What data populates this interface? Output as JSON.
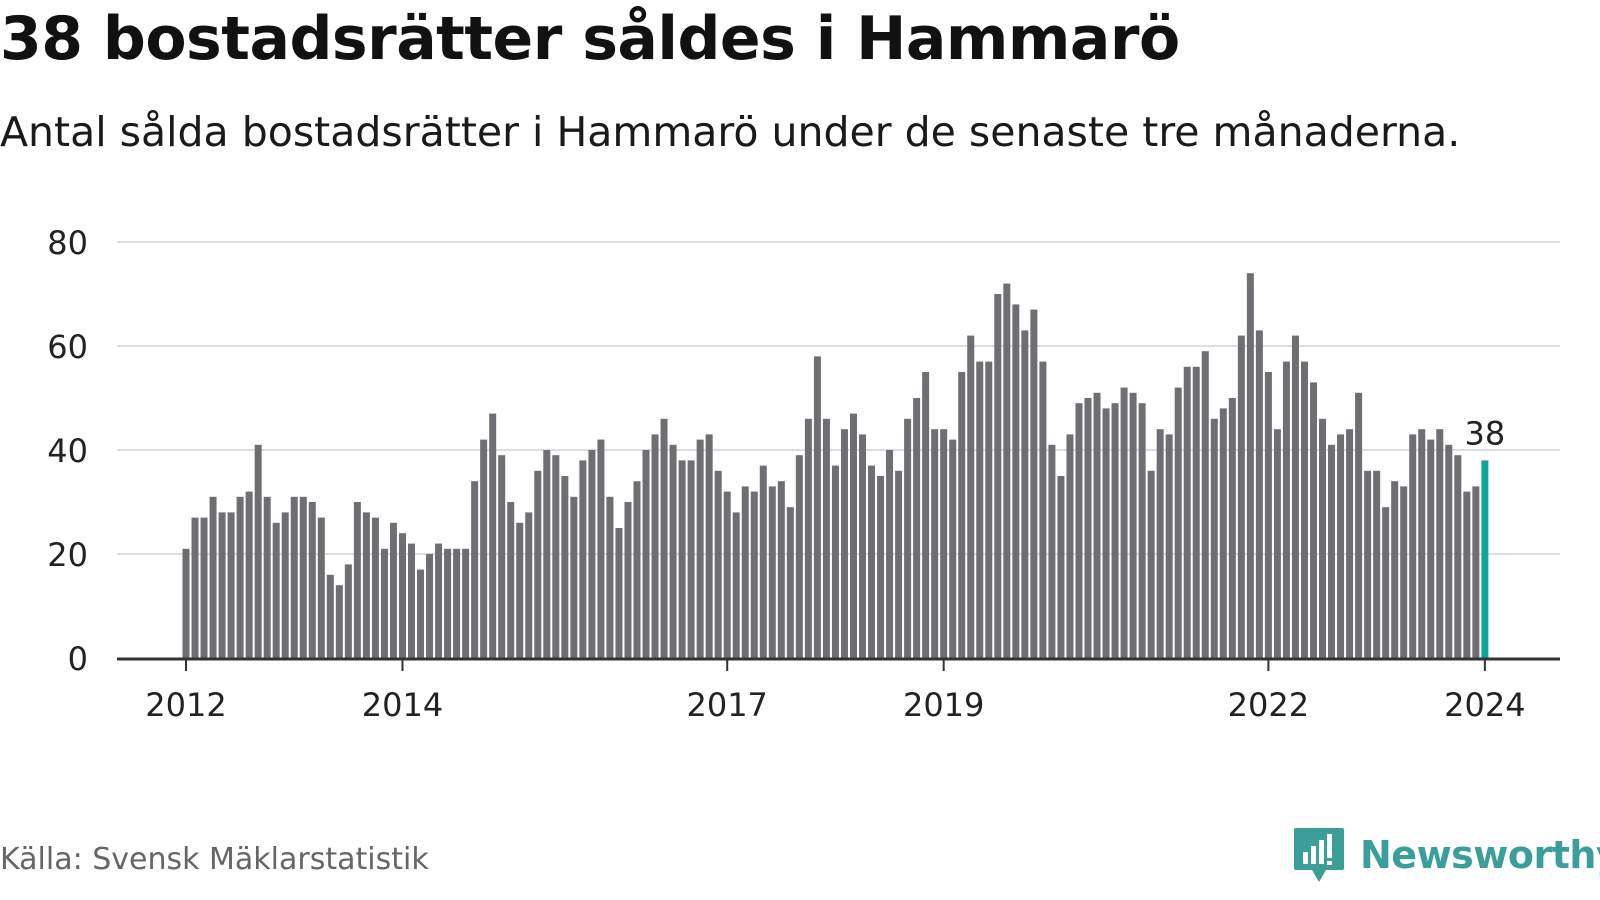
{
  "header": {
    "title": "38 bostadsrätter såldes i Hammarö",
    "subtitle": "Antal sålda bostadsrätter i Hammarö under de senaste tre månaderna."
  },
  "footer": {
    "source": "Källa: Svensk Mäklarstatistik",
    "brand": "Newsworthy",
    "brand_icon": "bar-chart-speech-bubble-icon"
  },
  "colors": {
    "bar": "#6e6e73",
    "highlight": "#0fa59a",
    "grid": "#dddddd",
    "axis": "#333333",
    "brand": "#3a9f98"
  },
  "chart_data": {
    "type": "bar",
    "title": "38 bostadsrätter såldes i Hammarö",
    "xlabel": "",
    "ylabel": "",
    "ylim": [
      0,
      80
    ],
    "yticks": [
      0,
      20,
      40,
      60,
      80
    ],
    "xticks": [
      {
        "label": "2012",
        "index": 0
      },
      {
        "label": "2014",
        "index": 24
      },
      {
        "label": "2017",
        "index": 60
      },
      {
        "label": "2019",
        "index": 84
      },
      {
        "label": "2022",
        "index": 120
      },
      {
        "label": "2024",
        "index": 144
      }
    ],
    "grid": true,
    "highlight_index": 144,
    "highlight_label": "38",
    "values": [
      21,
      27,
      27,
      31,
      28,
      28,
      31,
      32,
      41,
      31,
      26,
      28,
      31,
      31,
      30,
      27,
      16,
      14,
      18,
      30,
      28,
      27,
      21,
      26,
      24,
      22,
      17,
      20,
      22,
      21,
      21,
      21,
      34,
      42,
      47,
      39,
      30,
      26,
      28,
      36,
      40,
      39,
      35,
      31,
      38,
      40,
      42,
      31,
      25,
      30,
      34,
      40,
      43,
      46,
      41,
      38,
      38,
      42,
      43,
      36,
      32,
      28,
      33,
      32,
      37,
      33,
      34,
      29,
      39,
      46,
      58,
      46,
      37,
      44,
      47,
      43,
      37,
      35,
      40,
      36,
      46,
      50,
      55,
      44,
      44,
      42,
      55,
      62,
      57,
      57,
      70,
      72,
      68,
      63,
      67,
      57,
      41,
      35,
      43,
      49,
      50,
      51,
      48,
      49,
      52,
      51,
      49,
      36,
      44,
      43,
      52,
      56,
      56,
      59,
      46,
      48,
      50,
      62,
      74,
      63,
      55,
      44,
      57,
      62,
      57,
      53,
      46,
      41,
      43,
      44,
      51,
      36,
      36,
      29,
      34,
      33,
      43,
      44,
      42,
      44,
      41,
      39,
      32,
      33,
      38
    ]
  }
}
